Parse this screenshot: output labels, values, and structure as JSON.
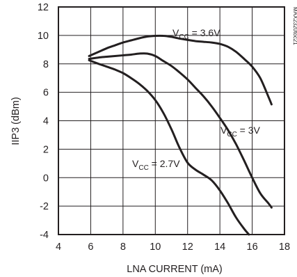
{
  "chart_data": {
    "type": "line",
    "title": "",
    "xlabel": "LNA CURRENT (mA)",
    "ylabel": "IIP3 (dBm)",
    "xlim": [
      4,
      18
    ],
    "ylim": [
      -4,
      12
    ],
    "x_ticks": [
      "4",
      "6",
      "8",
      "10",
      "12",
      "14",
      "16",
      "18"
    ],
    "y_ticks": [
      "12",
      "10",
      "8",
      "6",
      "4",
      "2",
      "0",
      "-2",
      "-4"
    ],
    "grid": true,
    "legend": "none (series labeled inline)",
    "figure_id": "MAX2320toc21",
    "series": [
      {
        "name": "VCC = 3.6V",
        "label_main": "V",
        "label_sub": "CC",
        "label_rest": " = 3.6V",
        "points": [
          [
            5.9,
            8.55
          ],
          [
            6.5,
            8.85
          ],
          [
            7.0,
            9.1
          ],
          [
            7.5,
            9.3
          ],
          [
            8.0,
            9.5
          ],
          [
            8.5,
            9.65
          ],
          [
            9.0,
            9.8
          ],
          [
            9.5,
            9.92
          ],
          [
            10.0,
            9.97
          ],
          [
            10.5,
            9.97
          ],
          [
            11.0,
            9.9
          ],
          [
            11.5,
            9.78
          ],
          [
            12.0,
            9.68
          ],
          [
            12.5,
            9.6
          ],
          [
            13.0,
            9.55
          ],
          [
            13.5,
            9.5
          ],
          [
            14.0,
            9.4
          ],
          [
            14.5,
            9.2
          ],
          [
            15.0,
            8.85
          ],
          [
            15.5,
            8.35
          ],
          [
            16.0,
            7.8
          ],
          [
            16.5,
            7.0
          ],
          [
            17.0,
            5.7
          ],
          [
            17.2,
            5.15
          ]
        ]
      },
      {
        "name": "VCC = 3V",
        "label_main": "V",
        "label_sub": "CC",
        "label_rest": " = 3V",
        "points": [
          [
            5.9,
            8.35
          ],
          [
            6.5,
            8.45
          ],
          [
            7.0,
            8.5
          ],
          [
            7.5,
            8.55
          ],
          [
            8.0,
            8.6
          ],
          [
            8.5,
            8.65
          ],
          [
            9.0,
            8.72
          ],
          [
            9.5,
            8.72
          ],
          [
            10.0,
            8.55
          ],
          [
            10.5,
            8.2
          ],
          [
            11.0,
            7.85
          ],
          [
            11.5,
            7.4
          ],
          [
            12.0,
            6.9
          ],
          [
            12.5,
            6.3
          ],
          [
            13.0,
            5.7
          ],
          [
            13.5,
            5.0
          ],
          [
            14.0,
            4.2
          ],
          [
            14.5,
            3.35
          ],
          [
            15.0,
            2.35
          ],
          [
            15.5,
            1.2
          ],
          [
            16.0,
            0.0
          ],
          [
            16.5,
            -1.1
          ],
          [
            17.0,
            -1.8
          ],
          [
            17.2,
            -2.1
          ]
        ]
      },
      {
        "name": "VCC = 2.7V",
        "label_main": "V",
        "label_sub": "CC",
        "label_rest": " = 2.7V",
        "points": [
          [
            5.9,
            8.25
          ],
          [
            6.5,
            8.0
          ],
          [
            7.0,
            7.8
          ],
          [
            7.5,
            7.6
          ],
          [
            8.0,
            7.35
          ],
          [
            8.5,
            7.0
          ],
          [
            9.0,
            6.6
          ],
          [
            9.5,
            6.1
          ],
          [
            10.0,
            5.45
          ],
          [
            10.5,
            4.55
          ],
          [
            11.0,
            3.4
          ],
          [
            11.5,
            2.1
          ],
          [
            12.0,
            1.05
          ],
          [
            12.5,
            0.55
          ],
          [
            13.0,
            0.2
          ],
          [
            13.5,
            -0.2
          ],
          [
            14.0,
            -0.9
          ],
          [
            14.5,
            -1.8
          ],
          [
            15.0,
            -2.8
          ],
          [
            15.5,
            -3.6
          ],
          [
            15.8,
            -4.0
          ]
        ]
      }
    ]
  }
}
